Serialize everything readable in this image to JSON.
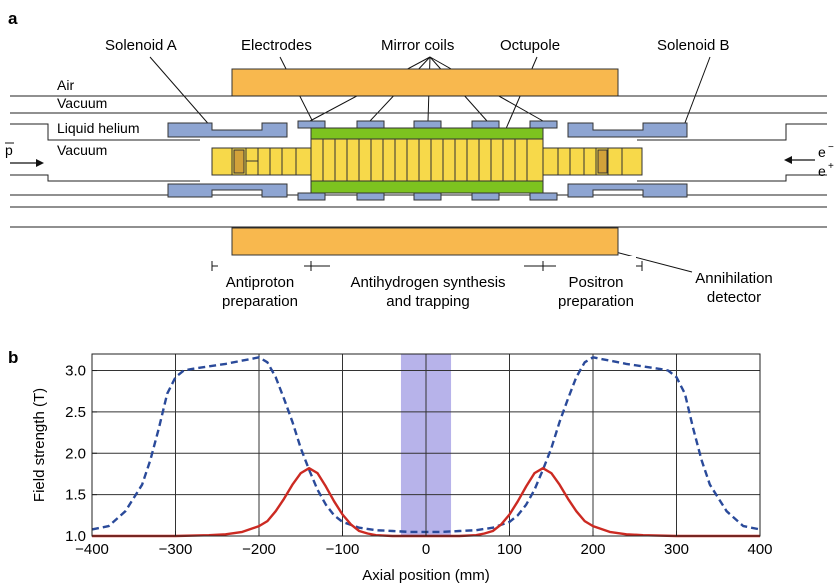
{
  "panel_a": {
    "label": "a",
    "callouts": {
      "solenoid_a": "Solenoid A",
      "electrodes": "Electrodes",
      "mirror_coils": "Mirror coils",
      "octupole": "Octupole",
      "solenoid_b": "Solenoid B"
    },
    "regions": {
      "air": "Air",
      "vacuum_outer": "Vacuum",
      "liquid_helium": "Liquid helium",
      "vacuum_inner": "Vacuum"
    },
    "beams": {
      "antiproton": "p",
      "electron": "e",
      "electron_sup": "−",
      "positron": "e",
      "positron_sup": "+"
    },
    "bottom_labels": {
      "antiproton_line1": "Antiproton",
      "antiproton_line2": "preparation",
      "synthesis_line1": "Antihydrogen synthesis",
      "synthesis_line2": "and trapping",
      "positron_line1": "Positron",
      "positron_line2": "preparation",
      "annihilation_line1": "Annihilation",
      "annihilation_line2": "detector"
    },
    "colors": {
      "detector": "#f8b84e",
      "electrodes": "#f7d94a",
      "octupole": "#7dc31f",
      "coils": "#8ea5d2"
    }
  },
  "panel_b": {
    "label": "b",
    "chart_data": {
      "type": "line",
      "xlabel": "Axial position (mm)",
      "ylabel": "Field strength (T)",
      "xlim": [
        -400,
        400
      ],
      "ylim": [
        1.0,
        3.2
      ],
      "xticks": [
        -400,
        -300,
        -200,
        -100,
        0,
        100,
        200,
        300,
        400
      ],
      "xtick_labels": [
        "−400",
        "−300",
        "−200",
        "−100",
        "0",
        "100",
        "200",
        "300",
        "400"
      ],
      "yticks": [
        1.0,
        1.5,
        2.0,
        2.5,
        3.0
      ],
      "ytick_labels": [
        "1.0",
        "1.5",
        "2.0",
        "2.5",
        "3.0"
      ],
      "grid": true,
      "shaded_region": [
        -30,
        30
      ],
      "shade_color": "#b7b3ea",
      "series": [
        {
          "style": "dashed",
          "color": "#2a4a9a",
          "x": [
            -400,
            -380,
            -360,
            -340,
            -330,
            -320,
            -310,
            -300,
            -290,
            -280,
            -260,
            -240,
            -220,
            -210,
            -200,
            -190,
            -180,
            -170,
            -160,
            -150,
            -140,
            -130,
            -120,
            -110,
            -100,
            -80,
            -60,
            -40,
            -20,
            0,
            20,
            40,
            60,
            80,
            100,
            110,
            120,
            130,
            140,
            150,
            160,
            170,
            180,
            190,
            200,
            210,
            220,
            240,
            260,
            280,
            290,
            300,
            310,
            320,
            330,
            340,
            360,
            380,
            400
          ],
          "y": [
            1.08,
            1.12,
            1.3,
            1.62,
            1.92,
            2.3,
            2.72,
            2.92,
            3.0,
            3.02,
            3.05,
            3.08,
            3.12,
            3.14,
            3.16,
            3.1,
            2.92,
            2.66,
            2.38,
            2.06,
            1.8,
            1.56,
            1.38,
            1.25,
            1.17,
            1.1,
            1.07,
            1.06,
            1.05,
            1.05,
            1.05,
            1.06,
            1.07,
            1.1,
            1.17,
            1.25,
            1.38,
            1.56,
            1.8,
            2.06,
            2.38,
            2.66,
            2.92,
            3.1,
            3.16,
            3.14,
            3.12,
            3.08,
            3.05,
            3.02,
            3.0,
            2.92,
            2.72,
            2.3,
            1.92,
            1.62,
            1.3,
            1.12,
            1.08
          ]
        },
        {
          "style": "solid",
          "color": "#cc2a22",
          "x": [
            -400,
            -300,
            -260,
            -240,
            -220,
            -200,
            -190,
            -180,
            -170,
            -160,
            -150,
            -140,
            -130,
            -120,
            -110,
            -100,
            -90,
            -80,
            -70,
            -60,
            -40,
            0,
            40,
            60,
            70,
            80,
            90,
            100,
            110,
            120,
            130,
            140,
            150,
            160,
            170,
            180,
            190,
            200,
            220,
            240,
            260,
            300,
            400
          ],
          "y": [
            1.0,
            1.0,
            1.01,
            1.02,
            1.05,
            1.12,
            1.18,
            1.3,
            1.45,
            1.62,
            1.76,
            1.82,
            1.76,
            1.6,
            1.42,
            1.26,
            1.14,
            1.06,
            1.03,
            1.01,
            1.0,
            1.0,
            1.0,
            1.01,
            1.03,
            1.06,
            1.14,
            1.26,
            1.42,
            1.6,
            1.76,
            1.82,
            1.76,
            1.62,
            1.45,
            1.3,
            1.18,
            1.12,
            1.05,
            1.02,
            1.01,
            1.0,
            1.0
          ]
        }
      ]
    }
  }
}
